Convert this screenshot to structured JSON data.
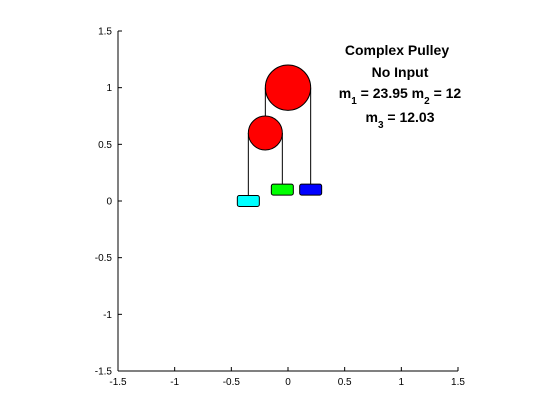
{
  "chart_data": {
    "type": "pulley",
    "title": "Complex Pulley",
    "subtitle": "No Input",
    "annotations": [
      [
        "m",
        "1",
        " = 23.95 m",
        "2",
        " = 12"
      ],
      [
        "m",
        "3",
        " = 12.03"
      ]
    ],
    "xlim": [
      -1.5,
      1.5
    ],
    "ylim": [
      -1.5,
      1.5
    ],
    "xticks": [
      -1.5,
      -1,
      -0.5,
      0,
      0.5,
      1,
      1.5
    ],
    "yticks": [
      -1.5,
      -1,
      -0.5,
      0,
      0.5,
      1,
      1.5
    ],
    "pulleys": [
      {
        "x": 0,
        "y": 1,
        "r": 0.2,
        "color": "#ff0000"
      },
      {
        "x": -0.2,
        "y": 0.6,
        "r": 0.15,
        "color": "#ff0000"
      }
    ],
    "masses": [
      {
        "x": -0.35,
        "y": 0,
        "color": "#00ffff"
      },
      {
        "x": -0.05,
        "y": 0.1,
        "color": "#00ff00"
      },
      {
        "x": 0.2,
        "y": 0.1,
        "color": "#0000ff"
      }
    ]
  }
}
